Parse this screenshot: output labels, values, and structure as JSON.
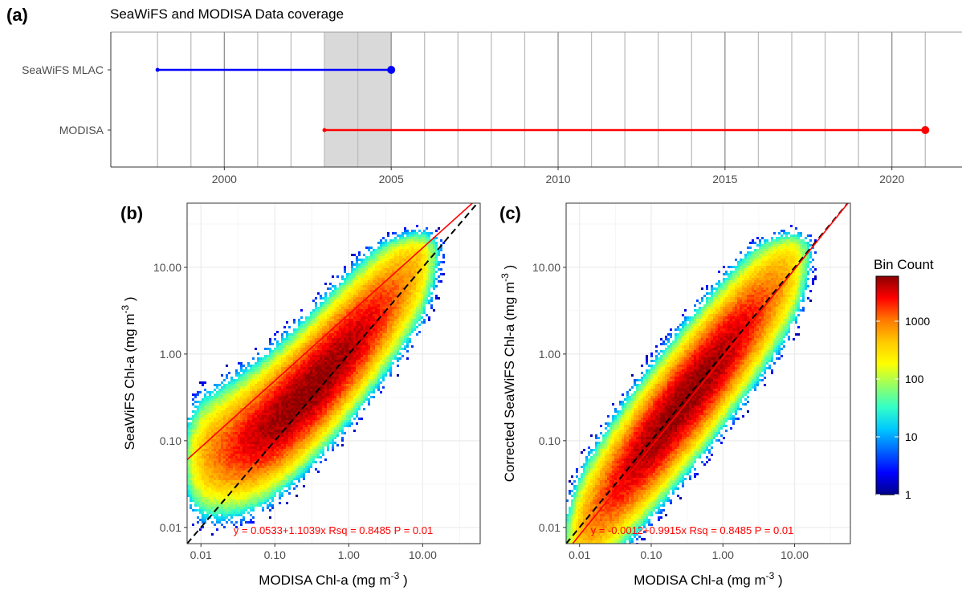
{
  "colors": {
    "seawifs": "#0000ff",
    "modisa": "#ff0000",
    "shade": "#d9d9d9",
    "fit_line": "#ff0000",
    "one_to_one": "#000000"
  },
  "panel_a": {
    "letter": "(a)",
    "title": "SeaWiFS and MODISA Data coverage"
  },
  "panel_b": {
    "letter": "(b)",
    "ylabel": "SeaWiFS Chl-a (mg m",
    "xlabel": "MODISA Chl-a (mg m",
    "equation": "y = 0.0533+1.1039x  Rsq = 0.8485 P = 0.01"
  },
  "panel_c": {
    "letter": "(c)",
    "ylabel": "Corrected SeaWiFS Chl-a (mg m",
    "xlabel": "MODISA Chl-a (mg m",
    "equation": "y = -0.0012+0.9915x  Rsq = 0.8485 P = 0.01"
  },
  "unit_exponent": "-3",
  "unit_close": " )",
  "legend": {
    "title": "Bin Count",
    "ticks": [
      "1",
      "10",
      "100",
      "1000"
    ],
    "tick_values": [
      1,
      10,
      100,
      1000
    ],
    "range": [
      1,
      6000
    ],
    "palette": [
      "#00008b",
      "#0000ff",
      "#0064ff",
      "#00c8ff",
      "#32ffc8",
      "#96ff64",
      "#ffff00",
      "#ffc800",
      "#ff7800",
      "#ff0000",
      "#8b0000"
    ]
  },
  "chart_data": [
    {
      "type": "timeline",
      "title": "SeaWiFS and MODISA Data coverage",
      "categories": [
        "SeaWiFS MLAC",
        "MODISA"
      ],
      "series": [
        {
          "name": "SeaWiFS MLAC",
          "start": 1998,
          "end": 2005
        },
        {
          "name": "MODISA",
          "start": 2003,
          "end": 2021
        }
      ],
      "shaded_range": [
        2003,
        2005
      ],
      "xlim": [
        1996.6,
        2022.1
      ],
      "xticks": [
        "2000",
        "2005",
        "2010",
        "2015",
        "2020"
      ],
      "xtick_values": [
        2000,
        2005,
        2010,
        2015,
        2020
      ],
      "grid_years_from": 1998,
      "grid_years_to": 2021
    },
    {
      "type": "heatmap",
      "title": "",
      "xlabel": "MODISA Chl-a (mg m^-3)",
      "ylabel": "SeaWiFS Chl-a (mg m^-3)",
      "xscale": "log",
      "yscale": "log",
      "xlim": [
        0.0065,
        60
      ],
      "ylim": [
        0.0065,
        55
      ],
      "xticks": [
        "0.01",
        "0.10",
        "1.00",
        "10.00"
      ],
      "xtick_values": [
        0.01,
        0.1,
        1,
        10
      ],
      "yticks": [
        "0.01",
        "0.10",
        "1.00",
        "10.00"
      ],
      "ytick_values": [
        0.01,
        0.1,
        1,
        10
      ],
      "fit": {
        "intercept": 0.0533,
        "slope": 1.1039,
        "rsq": 0.8485,
        "p": 0.01
      },
      "one_to_one": true,
      "density": {
        "centre_log": -0.55,
        "spread_x": 0.75,
        "spread_y": 0.75,
        "corr": 0.92,
        "slope": 1.1039
      }
    },
    {
      "type": "heatmap",
      "title": "",
      "xlabel": "MODISA Chl-a (mg m^-3)",
      "ylabel": "Corrected SeaWiFS Chl-a (mg m^-3)",
      "xscale": "log",
      "yscale": "log",
      "xlim": [
        0.0065,
        60
      ],
      "ylim": [
        0.0065,
        55
      ],
      "xticks": [
        "0.01",
        "0.10",
        "1.00",
        "10.00"
      ],
      "xtick_values": [
        0.01,
        0.1,
        1,
        10
      ],
      "yticks": [
        "0.01",
        "0.10",
        "1.00",
        "10.00"
      ],
      "ytick_values": [
        0.01,
        0.1,
        1,
        10
      ],
      "fit": {
        "intercept": -0.0012,
        "slope": 0.9915,
        "rsq": 0.8485,
        "p": 0.01
      },
      "one_to_one": true,
      "density": {
        "centre_log": -0.55,
        "spread_x": 0.75,
        "spread_y": 0.75,
        "corr": 0.92,
        "slope": 0.9915
      }
    }
  ]
}
